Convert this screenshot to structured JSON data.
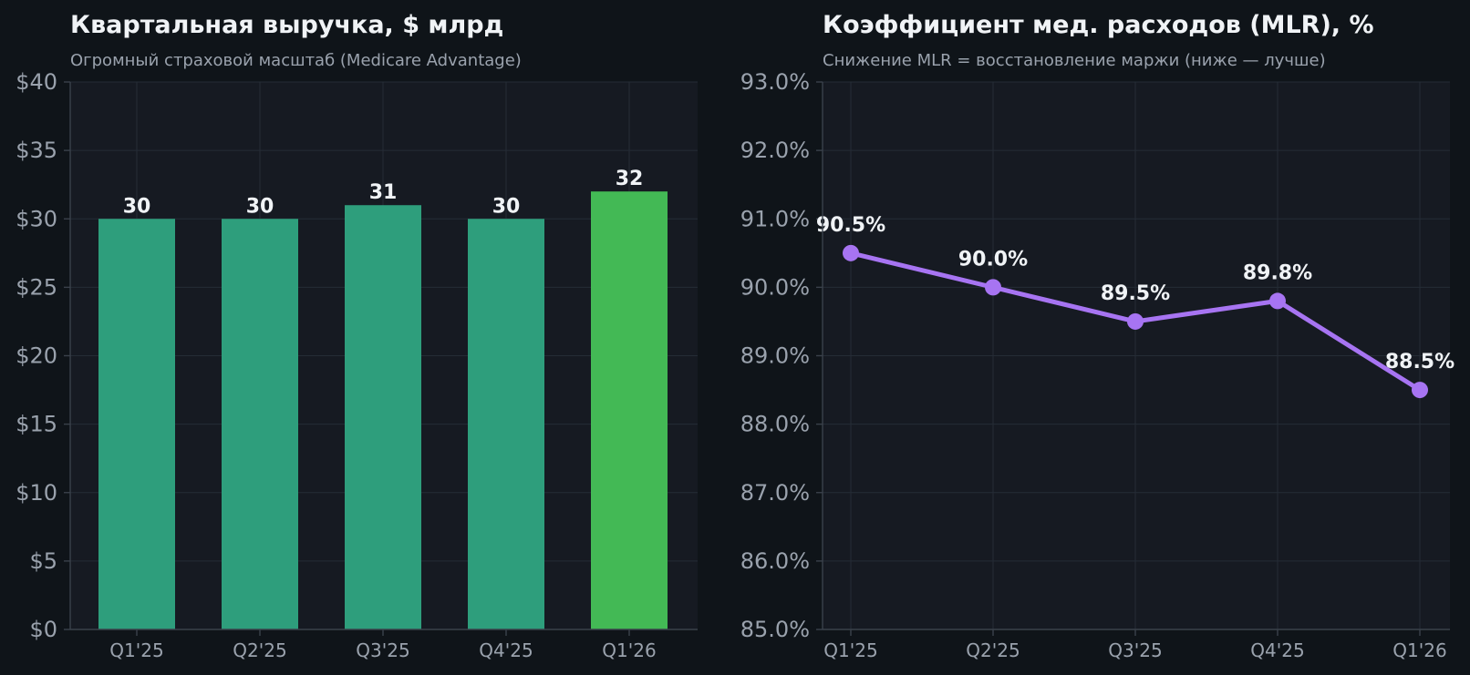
{
  "chart_data": [
    {
      "type": "bar",
      "title": "Квартальная выручка, $ млрд",
      "subtitle": "Огромный страховой масштаб (Medicare Advantage)",
      "categories": [
        "Q1'25",
        "Q2'25",
        "Q3'25",
        "Q4'25",
        "Q1'26"
      ],
      "values": [
        30,
        30,
        31,
        30,
        32
      ],
      "data_labels": [
        "30",
        "30",
        "31",
        "30",
        "32"
      ],
      "ylim": [
        0,
        40
      ],
      "yticks": [
        0,
        5,
        10,
        15,
        20,
        25,
        30,
        35,
        40
      ],
      "ytick_labels": [
        "$0",
        "$5",
        "$10",
        "$15",
        "$20",
        "$25",
        "$30",
        "$35",
        "$40"
      ],
      "grid": true,
      "colors": {
        "bar": "#2e9e7c",
        "highlight": "#43b955",
        "plot_bg": "#161a22",
        "grid": "#252c36"
      },
      "highlight_index": 4
    },
    {
      "type": "line",
      "title": "Коэффициент мед. расходов (MLR), %",
      "subtitle": "Снижение MLR = восстановление маржи (ниже — лучше)",
      "categories": [
        "Q1'25",
        "Q2'25",
        "Q3'25",
        "Q4'25",
        "Q1'26"
      ],
      "values": [
        90.5,
        90.0,
        89.5,
        89.8,
        88.5
      ],
      "data_labels": [
        "90.5%",
        "90.0%",
        "89.5%",
        "89.8%",
        "88.5%"
      ],
      "ylim": [
        85,
        93
      ],
      "yticks": [
        85,
        86,
        87,
        88,
        89,
        90,
        91,
        92,
        93
      ],
      "ytick_labels": [
        "85.0%",
        "86.0%",
        "87.0%",
        "88.0%",
        "89.0%",
        "90.0%",
        "91.0%",
        "92.0%",
        "93.0%"
      ],
      "grid": true,
      "colors": {
        "line": "#a774f2",
        "plot_bg": "#161a22",
        "grid": "#252c36"
      }
    }
  ]
}
